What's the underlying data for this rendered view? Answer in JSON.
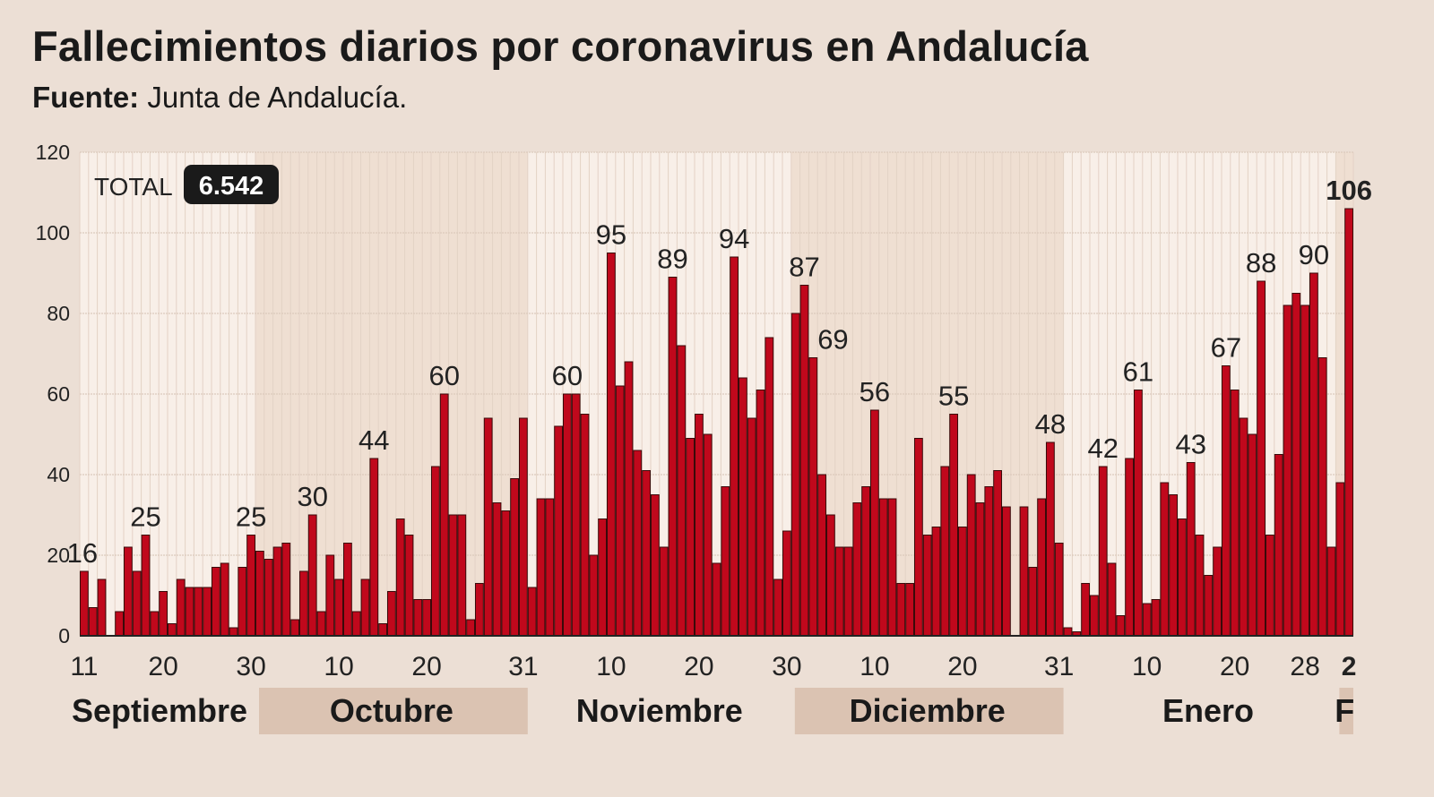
{
  "header": {
    "title": "Fallecimientos diarios por coronavirus en Andalucía",
    "source_label": "Fuente:",
    "source_value": "Junta de Andalucía."
  },
  "total": {
    "label": "TOTAL",
    "value": "6.542"
  },
  "chart_data": {
    "type": "bar",
    "title": "Fallecimientos diarios por coronavirus en Andalucía",
    "xlabel": "",
    "ylabel": "",
    "ylim": [
      0,
      120
    ],
    "yticks": [
      0,
      20,
      40,
      60,
      80,
      100,
      120
    ],
    "grid": true,
    "bar_color": "#c0081c",
    "months": [
      {
        "label": "Septiembre",
        "days": 20,
        "shaded": false
      },
      {
        "label": "Octubre",
        "days": 31,
        "shaded": true
      },
      {
        "label": "Noviembre",
        "days": 30,
        "shaded": false
      },
      {
        "label": "Diciembre",
        "days": 31,
        "shaded": true
      },
      {
        "label": "Enero",
        "days": 31,
        "shaded": false
      },
      {
        "label": "F",
        "days": 2,
        "shaded": true
      }
    ],
    "first_day": 11,
    "values": [
      16,
      7,
      14,
      0,
      6,
      22,
      16,
      25,
      6,
      11,
      3,
      14,
      12,
      12,
      12,
      17,
      18,
      2,
      17,
      25,
      21,
      19,
      22,
      23,
      4,
      16,
      30,
      6,
      20,
      14,
      23,
      6,
      14,
      44,
      3,
      11,
      29,
      25,
      9,
      9,
      42,
      60,
      30,
      30,
      4,
      13,
      54,
      33,
      31,
      39,
      54,
      12,
      34,
      34,
      52,
      60,
      60,
      55,
      20,
      29,
      95,
      62,
      68,
      46,
      41,
      35,
      22,
      89,
      72,
      49,
      55,
      50,
      18,
      37,
      94,
      64,
      54,
      61,
      74,
      14,
      26,
      80,
      87,
      69,
      40,
      30,
      22,
      22,
      33,
      37,
      56,
      34,
      34,
      13,
      13,
      49,
      25,
      27,
      42,
      55,
      27,
      40,
      33,
      37,
      41,
      32,
      0,
      32,
      17,
      34,
      48,
      23,
      2,
      1,
      13,
      10,
      42,
      18,
      5,
      44,
      61,
      8,
      9,
      38,
      35,
      29,
      43,
      25,
      15,
      22,
      67,
      61,
      54,
      50,
      88,
      25,
      45,
      82,
      85,
      82,
      90,
      69,
      22,
      38,
      106
    ],
    "xticks": [
      {
        "month": 0,
        "day": 11,
        "label": "11"
      },
      {
        "month": 0,
        "day": 20,
        "label": "20"
      },
      {
        "month": 0,
        "day": 30,
        "label": "30"
      },
      {
        "month": 1,
        "day": 10,
        "label": "10"
      },
      {
        "month": 1,
        "day": 20,
        "label": "20"
      },
      {
        "month": 1,
        "day": 31,
        "label": "31"
      },
      {
        "month": 2,
        "day": 10,
        "label": "10"
      },
      {
        "month": 2,
        "day": 20,
        "label": "20"
      },
      {
        "month": 2,
        "day": 30,
        "label": "30"
      },
      {
        "month": 3,
        "day": 10,
        "label": "10"
      },
      {
        "month": 3,
        "day": 20,
        "label": "20"
      },
      {
        "month": 3,
        "day": 31,
        "label": "31"
      },
      {
        "month": 4,
        "day": 10,
        "label": "10"
      },
      {
        "month": 4,
        "day": 20,
        "label": "20"
      },
      {
        "month": 4,
        "day": 28,
        "label": "28"
      },
      {
        "month": 5,
        "day": 2,
        "label": "2",
        "bold": true
      }
    ],
    "annotations": [
      {
        "month": 0,
        "day": 11,
        "label": "16"
      },
      {
        "month": 0,
        "day": 18,
        "label": "25"
      },
      {
        "month": 0,
        "day": 30,
        "label": "25"
      },
      {
        "month": 1,
        "day": 7,
        "label": "30"
      },
      {
        "month": 1,
        "day": 14,
        "label": "44"
      },
      {
        "month": 1,
        "day": 22,
        "label": "60"
      },
      {
        "month": 2,
        "day": 5,
        "label": "60"
      },
      {
        "month": 2,
        "day": 10,
        "label": "95"
      },
      {
        "month": 2,
        "day": 17,
        "label": "89"
      },
      {
        "month": 2,
        "day": 24,
        "label": "94"
      },
      {
        "month": 3,
        "day": 2,
        "label": "87"
      },
      {
        "month": 3,
        "day": 3,
        "label": "69"
      },
      {
        "month": 3,
        "day": 10,
        "label": "56"
      },
      {
        "month": 3,
        "day": 19,
        "label": "55"
      },
      {
        "month": 3,
        "day": 30,
        "label": "48"
      },
      {
        "month": 4,
        "day": 5,
        "label": "42"
      },
      {
        "month": 4,
        "day": 9,
        "label": "61"
      },
      {
        "month": 4,
        "day": 15,
        "label": "43"
      },
      {
        "month": 4,
        "day": 19,
        "label": "67"
      },
      {
        "month": 4,
        "day": 23,
        "label": "88"
      },
      {
        "month": 4,
        "day": 29,
        "label": "90"
      },
      {
        "month": 5,
        "day": 2,
        "label": "106",
        "bold": true
      }
    ]
  }
}
